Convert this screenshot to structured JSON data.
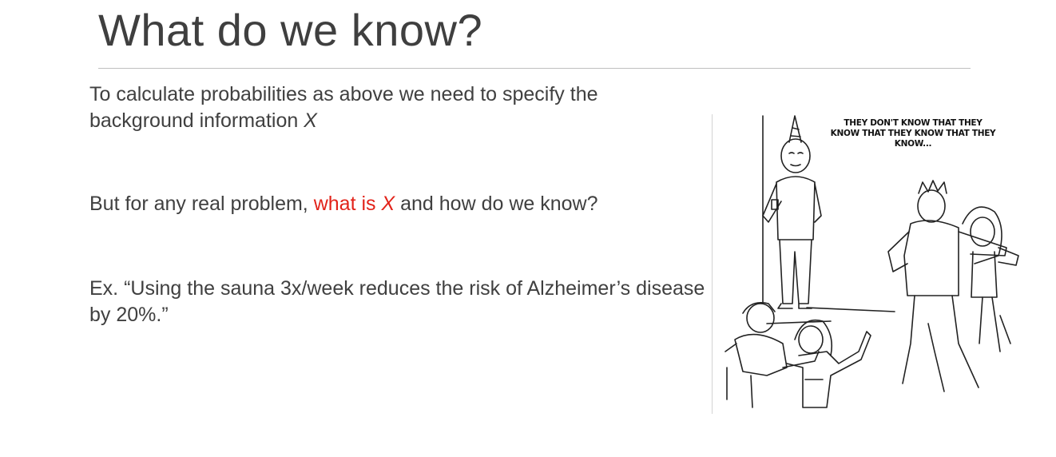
{
  "slide": {
    "title": "What do we know?",
    "paragraph1": {
      "text": "To calculate probabilities as above we need to specify the background information",
      "var": "X"
    },
    "paragraph2": {
      "before": "But for any real problem, ",
      "highlight_pre": "what is ",
      "highlight_var": "X",
      "after": " and how do we know?"
    },
    "paragraph3": {
      "text": "Ex. “Using the sauna 3x/week reduces the risk of Alzheimer’s disease by 20%.”"
    },
    "meme": {
      "caption_line1": "THEY DON'T KNOW THAT THEY",
      "caption_line2": "KNOW THAT THEY KNOW THAT THEY KNOW..."
    }
  },
  "colors": {
    "highlight": "#e2231a",
    "text": "#404040",
    "rule": "#bfbfbf"
  }
}
